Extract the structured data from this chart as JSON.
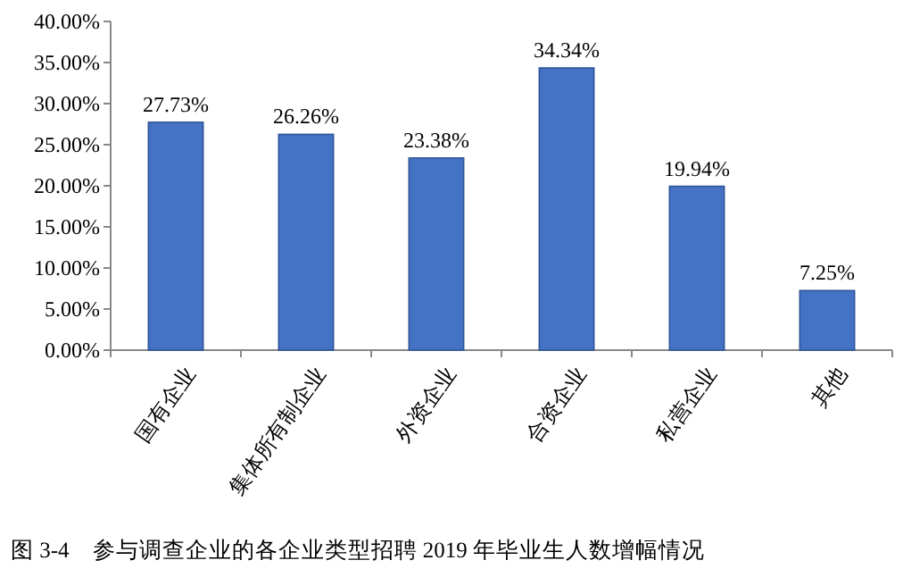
{
  "chart_data": {
    "type": "bar",
    "title": "图 3-4　参与调查企业的各企业类型招聘 2019 年毕业生人数增幅情况",
    "categories": [
      "国有企业",
      "集体所有制企业",
      "外资企业",
      "合资企业",
      "私营企业",
      "其他"
    ],
    "values": [
      27.73,
      26.26,
      23.38,
      34.34,
      19.94,
      7.25
    ],
    "value_labels": [
      "27.73%",
      "26.26%",
      "23.38%",
      "34.34%",
      "19.94%",
      "7.25%"
    ],
    "color": "#4472c4",
    "ylim": [
      0,
      40
    ],
    "yticks": [
      {
        "value": 0,
        "label": "0.00%"
      },
      {
        "value": 5,
        "label": "5.00%"
      },
      {
        "value": 10,
        "label": "10.00%"
      },
      {
        "value": 15,
        "label": "15.00%"
      },
      {
        "value": 20,
        "label": "20.00%"
      },
      {
        "value": 25,
        "label": "25.00%"
      },
      {
        "value": 30,
        "label": "30.00%"
      },
      {
        "value": 35,
        "label": "35.00%"
      },
      {
        "value": 40,
        "label": "40.00%"
      }
    ]
  }
}
